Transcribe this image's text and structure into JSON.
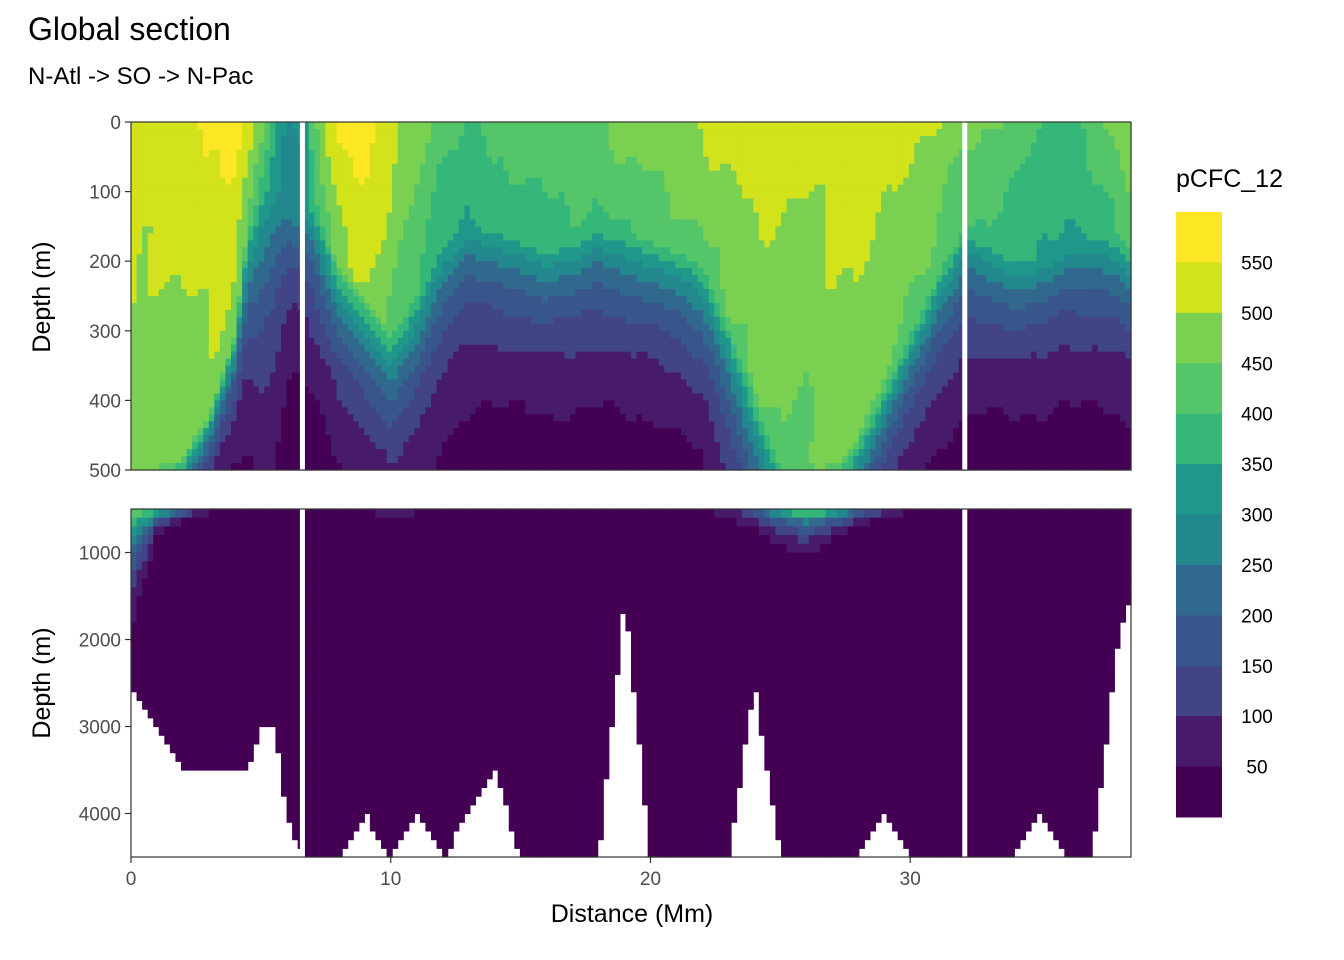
{
  "figure": {
    "title": "Global section",
    "subtitle": "N-Atl -> SO -> N-Pac"
  },
  "chart_data": {
    "type": "heatmap",
    "title": "Global section",
    "subtitle": "N-Atl -> SO -> N-Pac",
    "xlabel": "Distance (Mm)",
    "ylabel": "Depth (m)",
    "xlim": [
      0,
      38.5
    ],
    "x_ticks": [
      0,
      10,
      20,
      30
    ],
    "fill_variable": "pCFC_12",
    "legend": {
      "title": "pCFC_12",
      "position": "right",
      "breaks": [
        0,
        50,
        100,
        150,
        200,
        250,
        300,
        350,
        400,
        450,
        500,
        550,
        600
      ],
      "labels": [
        "50",
        "100",
        "150",
        "200",
        "250",
        "300",
        "350",
        "400",
        "450",
        "500",
        "550"
      ],
      "colors": [
        "#440154",
        "#481A6C",
        "#472F7D",
        "#414487",
        "#39568C",
        "#31688E",
        "#2A788E",
        "#23888E",
        "#1F988B",
        "#22A884",
        "#35B779",
        "#54C568",
        "#7AD151",
        "#A5DB36",
        "#D2E21B",
        "#FDE725"
      ]
    },
    "panels": [
      {
        "name": "upper",
        "ylim": [
          0,
          500
        ],
        "y_ticks": [
          0,
          100,
          200,
          300,
          400,
          500
        ],
        "y_reversed": true
      },
      {
        "name": "lower",
        "ylim": [
          500,
          4500
        ],
        "y_ticks": [
          1000,
          2000,
          3000,
          4000
        ],
        "y_reversed": true
      }
    ],
    "gaps_x": [
      6.6,
      32.1
    ],
    "surface_profile": {
      "x": [
        0,
        1,
        2,
        3,
        4,
        4.5,
        5,
        5.5,
        6,
        6.6,
        7,
        8,
        9,
        10,
        11,
        12,
        13,
        14,
        15,
        16,
        17,
        18,
        19,
        20,
        21,
        22,
        23,
        24,
        25,
        26,
        27,
        28,
        29,
        30,
        31,
        32.1,
        33,
        34,
        35,
        36,
        37,
        38,
        38.5
      ],
      "pcfc12_surface": [
        540,
        530,
        540,
        560,
        565,
        540,
        470,
        380,
        300,
        310,
        440,
        560,
        590,
        520,
        470,
        420,
        400,
        420,
        430,
        440,
        450,
        450,
        470,
        480,
        500,
        510,
        520,
        530,
        520,
        510,
        530,
        540,
        520,
        510,
        500,
        470,
        460,
        430,
        400,
        390,
        420,
        470,
        500
      ]
    },
    "penetration_depth_m": [
      500,
      500,
      480,
      420,
      300,
      140,
      90,
      100,
      130,
      150,
      120,
      200,
      240,
      300,
      250,
      180,
      150,
      160,
      170,
      180,
      170,
      150,
      160,
      170,
      180,
      200,
      280,
      380,
      480,
      520,
      500,
      450,
      380,
      300,
      220,
      150,
      170,
      200,
      200,
      180,
      170,
      160,
      180
    ],
    "deep_core_depth_m": [
      2600,
      900,
      700,
      600,
      560,
      600,
      800,
      800,
      600,
      550,
      560,
      600,
      640,
      720,
      700,
      640,
      580,
      560,
      560,
      560,
      560,
      560,
      560,
      560,
      580,
      620,
      760,
      900,
      1100,
      1300,
      1000,
      800,
      700,
      640,
      600,
      580,
      560,
      560,
      560,
      560,
      560,
      560,
      560
    ],
    "bottom_depth_m": [
      2500,
      3000,
      3500,
      3500,
      3500,
      3500,
      3000,
      3000,
      4000,
      4500,
      4500,
      4500,
      4000,
      4500,
      4000,
      4500,
      4000,
      3500,
      4500,
      4500,
      4500,
      4500,
      1500,
      4500,
      4500,
      4500,
      4500,
      2500,
      4500,
      4500,
      4500,
      4500,
      4000,
      4500,
      4500,
      4500,
      4500,
      4500,
      4000,
      4500,
      4500,
      2000,
      1500
    ],
    "grid": true
  }
}
